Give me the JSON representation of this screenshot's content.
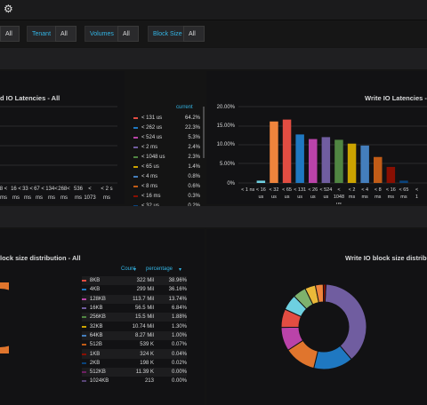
{
  "topbar": {
    "icon": "gear-icon"
  },
  "variables": [
    {
      "label": "",
      "value": "All"
    },
    {
      "label": "Tenant",
      "value": "All"
    },
    {
      "label": "Volumes",
      "value": "All"
    },
    {
      "label": "Block Size",
      "value": "All"
    }
  ],
  "read_latency": {
    "title": "d IO Latencies - All",
    "x_labels": [
      "8 <",
      "16 <",
      "33 <",
      "67 <",
      "134<",
      "268<",
      "536",
      "<",
      "< 2 s"
    ],
    "x_labels2": [
      "ms",
      "ms",
      "ms",
      "ms",
      "ms",
      "ms",
      "ms",
      "1073",
      "ms"
    ],
    "x_labels3": [
      "",
      "",
      "",
      "",
      "",
      "",
      "",
      "ms",
      ""
    ]
  },
  "latency_legend": {
    "header": "current",
    "items": [
      {
        "name": "< 131 us",
        "value": "64.2%",
        "color": "#e24d42"
      },
      {
        "name": "< 262 us",
        "value": "22.3%",
        "color": "#1f78c1"
      },
      {
        "name": "< 524 us",
        "value": "5.3%",
        "color": "#ba43a9"
      },
      {
        "name": "< 2 ms",
        "value": "2.4%",
        "color": "#705da0"
      },
      {
        "name": "< 1048 us",
        "value": "2.3%",
        "color": "#508642"
      },
      {
        "name": "< 65 us",
        "value": "1.4%",
        "color": "#cca300"
      },
      {
        "name": "< 4 ms",
        "value": "0.8%",
        "color": "#447ebc"
      },
      {
        "name": "< 8 ms",
        "value": "0.6%",
        "color": "#c15c17"
      },
      {
        "name": "< 16 ms",
        "value": "0.3%",
        "color": "#890f02"
      },
      {
        "name": "< 32 us",
        "value": "0.2%",
        "color": "#0a437c"
      }
    ]
  },
  "write_latency": {
    "title": "Write IO Latencies - A",
    "y_ticks": [
      "20.00%",
      "15.00%",
      "10.00%",
      "5.00%",
      "0%"
    ],
    "x_labels": [
      "< 1 ns",
      "< 16",
      "< 32",
      "< 65",
      "< 131",
      "< 26",
      "< 524",
      "<",
      "< 2",
      "< 4",
      "< 8",
      "< 16",
      "< 65",
      "<"
    ],
    "x_labels2": [
      "",
      "us",
      "us",
      "us",
      "us",
      "us",
      "us",
      "1048",
      "ms",
      "ms",
      "ms",
      "ms",
      "ms",
      "1"
    ],
    "x_labels3": [
      "",
      "",
      "",
      "",
      "",
      "",
      "",
      "us",
      "",
      "",
      "",
      "",
      "",
      ""
    ]
  },
  "chart_data": {
    "type": "bar",
    "title": "Write IO Latencies - A",
    "ylim": [
      0,
      20
    ],
    "ytick_unit": "%",
    "grid": true,
    "values": [
      0,
      0.6,
      16.1,
      16.6,
      12.7,
      11.5,
      12.0,
      11.3,
      10.3,
      9.8,
      6.8,
      4.2,
      0.6,
      0
    ],
    "colors": [
      "#808080",
      "#6ed0e0",
      "#ef843c",
      "#e24d42",
      "#1f78c1",
      "#ba43a9",
      "#705da0",
      "#508642",
      "#cca300",
      "#447ebc",
      "#c15c17",
      "#890f02",
      "#0a437c",
      "#808080"
    ]
  },
  "read_bs": {
    "title": "lock size distribution - All"
  },
  "bs_table": {
    "header_count": "Count",
    "header_pct": "percentage",
    "rows": [
      {
        "name": "8KB",
        "count": "322 Mil",
        "pct": "38.96%",
        "color": "#e24d42"
      },
      {
        "name": "4KB",
        "count": "299 Mil",
        "pct": "36.16%",
        "color": "#1f78c1"
      },
      {
        "name": "128KB",
        "count": "113.7 Mil",
        "pct": "13.74%",
        "color": "#ba43a9"
      },
      {
        "name": "16KB",
        "count": "56.5 Mil",
        "pct": "6.84%",
        "color": "#705da0"
      },
      {
        "name": "256KB",
        "count": "15.5 Mil",
        "pct": "1.88%",
        "color": "#508642"
      },
      {
        "name": "32KB",
        "count": "10.74 Mil",
        "pct": "1.30%",
        "color": "#cca300"
      },
      {
        "name": "64KB",
        "count": "8.27 Mil",
        "pct": "1.00%",
        "color": "#447ebc"
      },
      {
        "name": "512B",
        "count": "539 K",
        "pct": "0.07%",
        "color": "#c15c17"
      },
      {
        "name": "1KB",
        "count": "324 K",
        "pct": "0.04%",
        "color": "#890f02"
      },
      {
        "name": "2KB",
        "count": "198 K",
        "pct": "0.02%",
        "color": "#0a437c"
      },
      {
        "name": "512KB",
        "count": "11.39 K",
        "pct": "0.00%",
        "color": "#6d1f62"
      },
      {
        "name": "1024KB",
        "count": "213",
        "pct": "0.00%",
        "color": "#584477"
      }
    ]
  },
  "write_bs": {
    "title": "Write IO block size distribu"
  },
  "donut_data": {
    "values": [
      38,
      15,
      12,
      9,
      7,
      6,
      5,
      4,
      3,
      1
    ],
    "colors": [
      "#705da0",
      "#1f78c1",
      "#e0752d",
      "#ba43a9",
      "#e24d42",
      "#6ed0e0",
      "#7eb26d",
      "#eab839",
      "#ef843c",
      "#890f02"
    ]
  }
}
